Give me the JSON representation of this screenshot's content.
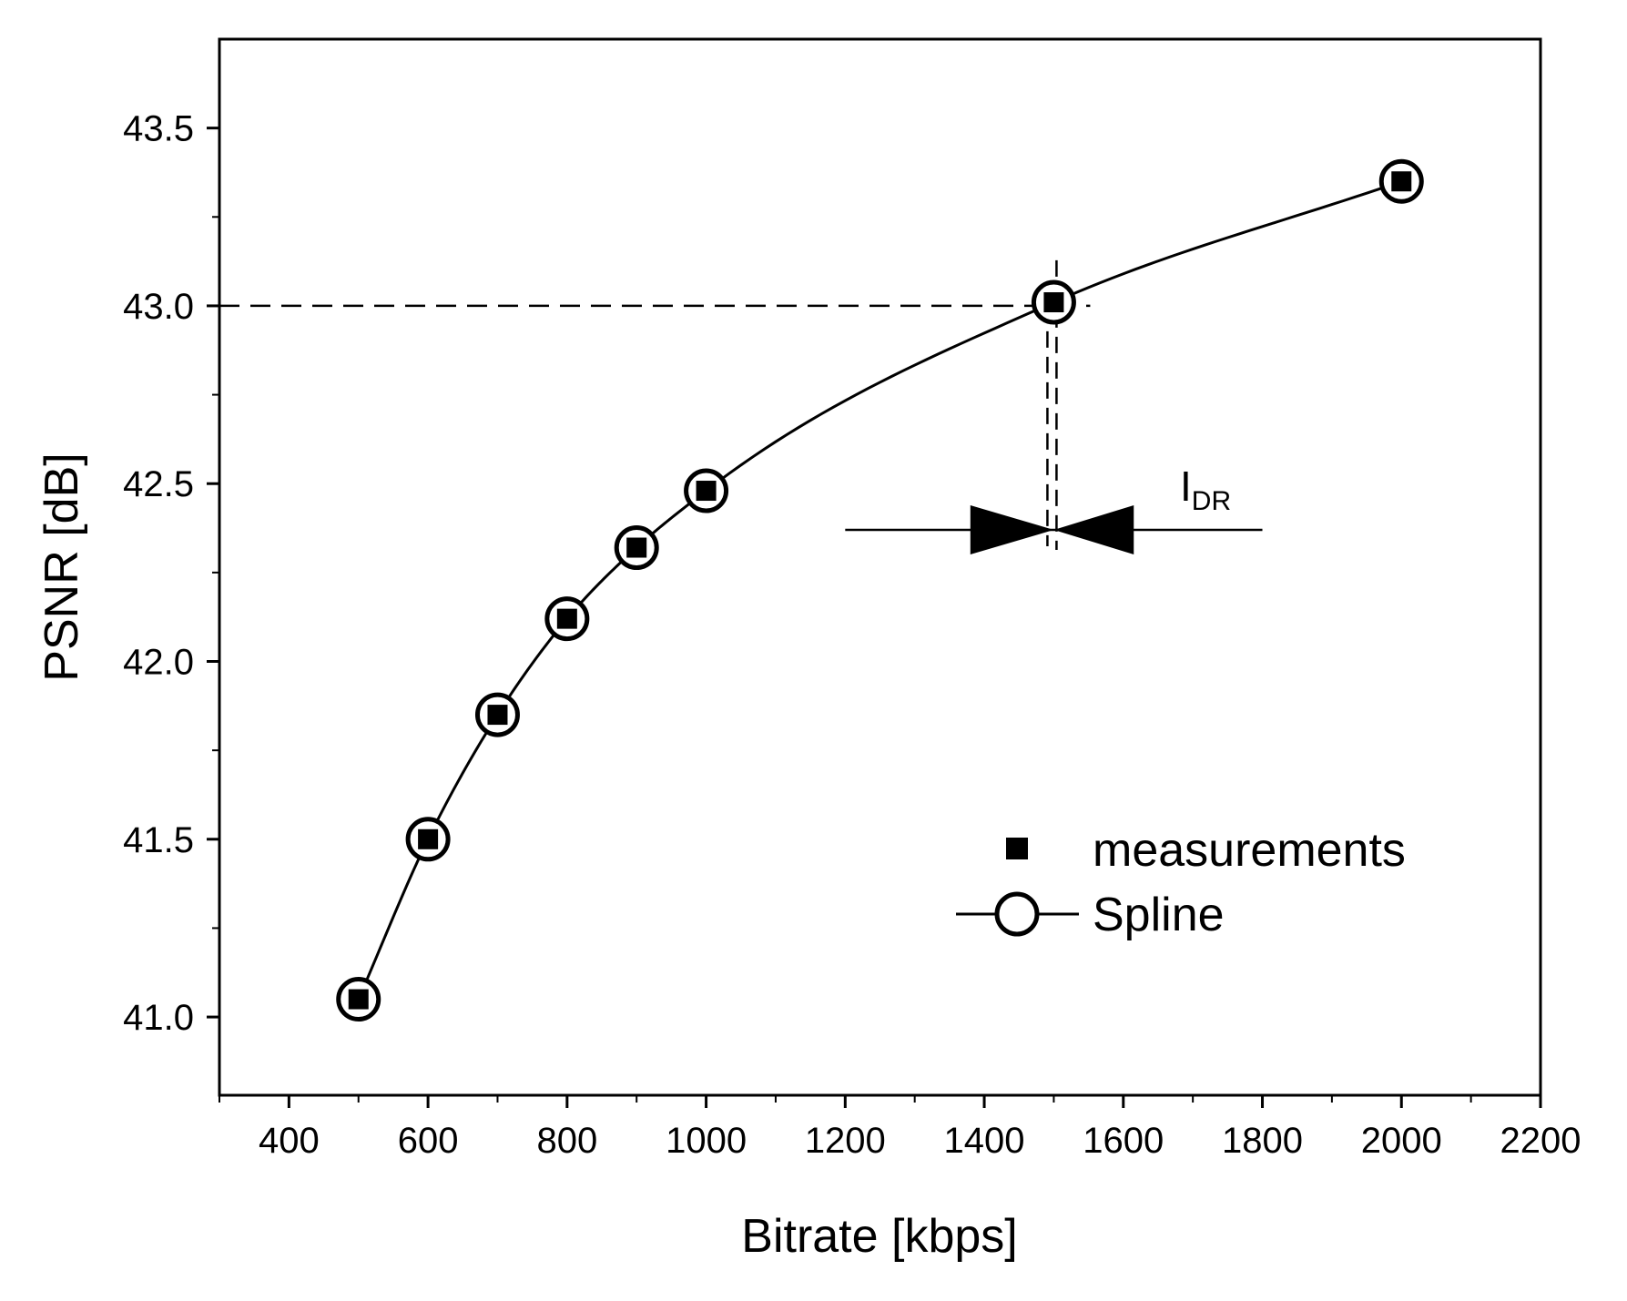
{
  "chart_data": {
    "type": "line",
    "title": "",
    "xlabel": "Bitrate [kbps]",
    "ylabel": "PSNR [dB]",
    "xlim": [
      300,
      2200
    ],
    "ylim": [
      40.78,
      43.75
    ],
    "x_ticks": [
      400,
      600,
      800,
      1000,
      1200,
      1400,
      1600,
      1800,
      2000,
      2200
    ],
    "x_tick_labels": [
      "400",
      "600",
      "800",
      "1000",
      "1200",
      "1400",
      "1600",
      "1800",
      "2000",
      "2200"
    ],
    "y_ticks": [
      41.0,
      41.5,
      42.0,
      42.5,
      43.0,
      43.5
    ],
    "y_tick_labels": [
      "41.0",
      "41.5",
      "42.0",
      "42.5",
      "43.0",
      "43.5"
    ],
    "grid": false,
    "legend_position": "bottom-right",
    "series": [
      {
        "name": "measurements",
        "marker": "filled-square",
        "x": [
          500,
          600,
          700,
          800,
          900,
          1000,
          1500,
          2000
        ],
        "y": [
          41.05,
          41.5,
          41.85,
          42.12,
          42.32,
          42.48,
          43.01,
          43.35
        ]
      },
      {
        "name": "Spline",
        "marker": "open-circle",
        "line": "solid",
        "x": [
          500,
          600,
          700,
          800,
          900,
          1000,
          1500,
          2000
        ],
        "y": [
          41.05,
          41.5,
          41.85,
          42.12,
          42.32,
          42.48,
          43.01,
          43.35
        ]
      }
    ],
    "annotations": {
      "reference_psnr": 43.0,
      "reference_bitrate": 1500,
      "interval_label": "I",
      "interval_label_sub": "DR",
      "interval_y": 42.37,
      "interval_line_x": [
        1200,
        1800
      ],
      "interval_arrow_tails_x": [
        1380,
        1615
      ]
    }
  }
}
